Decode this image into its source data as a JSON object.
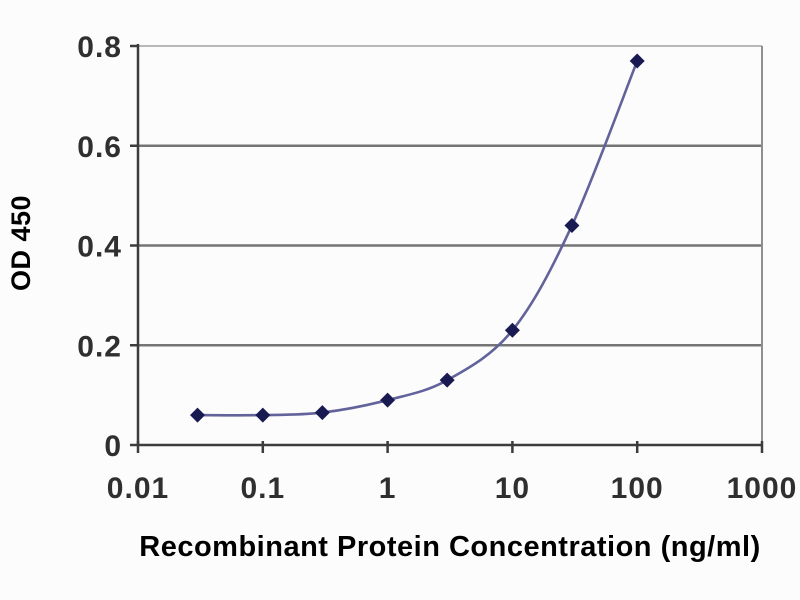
{
  "chart_data": {
    "type": "line",
    "title": "",
    "xlabel": "Recombinant Protein Concentration (ng/ml)",
    "ylabel": "OD 450",
    "xscale": "log",
    "xlim": [
      0.01,
      1000
    ],
    "ylim": [
      0,
      0.8
    ],
    "x": [
      0.03,
      0.1,
      0.3,
      1,
      3,
      10,
      30,
      100
    ],
    "y": [
      0.06,
      0.06,
      0.065,
      0.09,
      0.13,
      0.23,
      0.44,
      0.77
    ],
    "xticks": [
      0.01,
      0.1,
      1,
      10,
      100,
      1000
    ],
    "xtick_labels": [
      "0.01",
      "0.1",
      "1",
      "10",
      "100",
      "1000"
    ],
    "yticks": [
      0,
      0.2,
      0.4,
      0.6,
      0.8
    ],
    "ytick_labels": [
      "0",
      "0.2",
      "0.4",
      "0.6",
      "0.8"
    ],
    "grid": "horizontal-only",
    "legend": "none",
    "marker_shape": "diamond",
    "colors": {
      "line": "#63639c",
      "marker": "#1a1a52",
      "grid": "#757575",
      "frame_top": "#b8b8b8",
      "frame_right": "#8f8f8f",
      "axis": "#3c3c3c",
      "tick_text": "#2f2f2f",
      "axis_title": "#474747",
      "background": "#fcfcfc"
    }
  }
}
